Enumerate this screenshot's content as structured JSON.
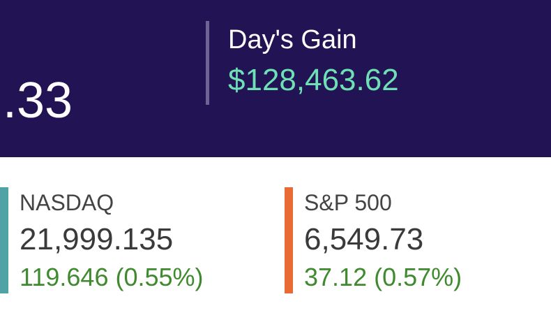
{
  "portfolio": {
    "value_fragment": ".33",
    "days_gain": {
      "label": "Day's Gain",
      "value": "$128,463.62"
    }
  },
  "indices": [
    {
      "name": "NASDAQ",
      "value": "21,999.135",
      "change": "119.646 (0.55%)"
    },
    {
      "name": "S&P 500",
      "value": "6,549.73",
      "change": "37.12 (0.57%)"
    }
  ]
}
